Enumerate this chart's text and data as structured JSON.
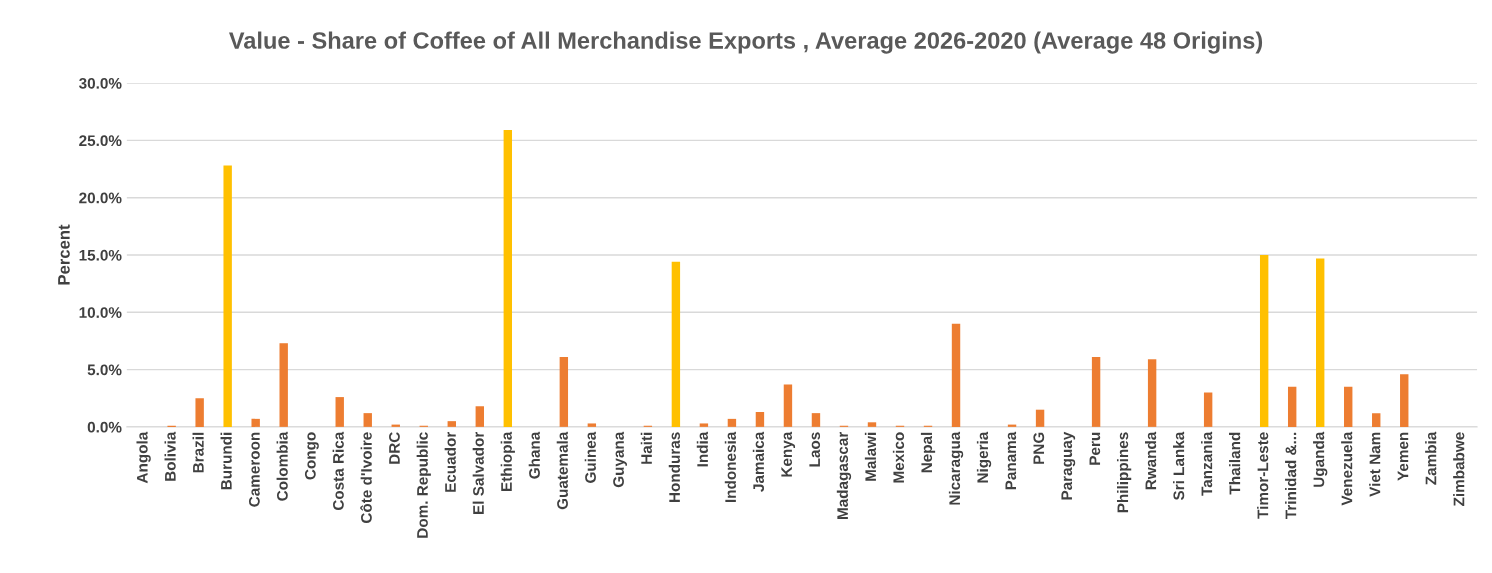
{
  "chart_data": {
    "type": "bar",
    "title": "Value - Share of Coffee of All Merchandise Exports , Average 2026-2020 (Average 48 Origins)",
    "ylabel": "Percent",
    "categories": [
      "Angola",
      "Bolivia",
      "Brazil",
      "Burundi",
      "Cameroon",
      "Colombia",
      "Congo",
      "Costa Rica",
      "Côte d'Ivoire",
      "DRC",
      "Dom. Republic",
      "Ecuador",
      "El Salvador",
      "Ethiopia",
      "Ghana",
      "Guatemala",
      "Guinea",
      "Guyana",
      "Haiti",
      "Honduras",
      "India",
      "Indonesia",
      "Jamaica",
      "Kenya",
      "Laos",
      "Madagascar",
      "Malawi",
      "Mexico",
      "Nepal",
      "Nicaragua",
      "Nigeria",
      "Panama",
      "PNG",
      "Paraguay",
      "Peru",
      "Philippines",
      "Rwanda",
      "Sri Lanka",
      "Tanzania",
      "Thailand",
      "Timor-Leste",
      "Trinidad &...",
      "Uganda",
      "Venezuela",
      "Viet Nam",
      "Yemen",
      "Zambia",
      "Zimbabwe"
    ],
    "values": [
      0,
      0.1,
      2.5,
      22.8,
      0.7,
      7.3,
      0,
      2.6,
      1.2,
      0.2,
      0.1,
      0.5,
      1.8,
      25.9,
      0,
      6.1,
      0.3,
      0,
      0.1,
      14.4,
      0.3,
      0.7,
      1.3,
      3.7,
      1.2,
      0.1,
      0.4,
      0.1,
      0.1,
      9.0,
      0,
      0.2,
      1.5,
      0,
      6.1,
      0,
      5.9,
      0,
      3.0,
      0,
      15.0,
      3.5,
      14.7,
      3.5,
      1.2,
      4.6,
      0,
      0
    ],
    "colors": [
      "#ed7d31",
      "#ed7d31",
      "#ed7d31",
      "#ffc000",
      "#ed7d31",
      "#ed7d31",
      "#ed7d31",
      "#ed7d31",
      "#ed7d31",
      "#ed7d31",
      "#ed7d31",
      "#ed7d31",
      "#ed7d31",
      "#ffc000",
      "#ed7d31",
      "#ed7d31",
      "#ed7d31",
      "#ed7d31",
      "#ed7d31",
      "#ffc000",
      "#ed7d31",
      "#ed7d31",
      "#ed7d31",
      "#ed7d31",
      "#ed7d31",
      "#ed7d31",
      "#ed7d31",
      "#ed7d31",
      "#ed7d31",
      "#ed7d31",
      "#ed7d31",
      "#ed7d31",
      "#ed7d31",
      "#ed7d31",
      "#ed7d31",
      "#ed7d31",
      "#ed7d31",
      "#ed7d31",
      "#ed7d31",
      "#ed7d31",
      "#ffc000",
      "#ed7d31",
      "#ffc000",
      "#ed7d31",
      "#ed7d31",
      "#ed7d31",
      "#ed7d31",
      "#ed7d31"
    ],
    "ylim": [
      0,
      30
    ],
    "yticks": [
      {
        "value": 0,
        "label": "0.0%"
      },
      {
        "value": 5,
        "label": "5.0%"
      },
      {
        "value": 10,
        "label": "10.0%"
      },
      {
        "value": 15,
        "label": "15.0%"
      },
      {
        "value": 20,
        "label": "20.0%"
      },
      {
        "value": 25,
        "label": "25.0%"
      },
      {
        "value": 30,
        "label": "30.0%"
      }
    ],
    "grid": "y"
  }
}
